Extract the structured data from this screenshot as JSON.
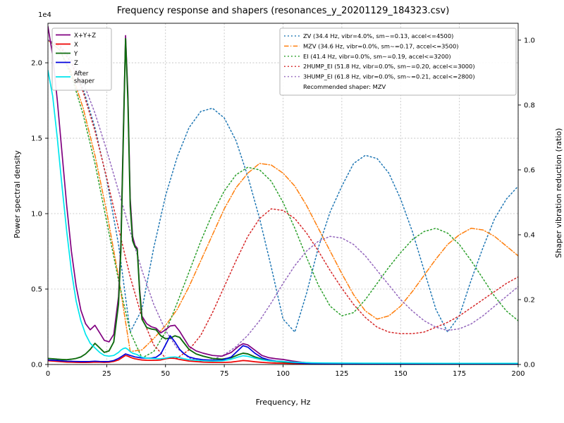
{
  "title": "Frequency response and shapers (resonances_y_20201129_184323.csv)",
  "axes": {
    "x": {
      "label": "Frequency, Hz",
      "min": 0,
      "max": 200,
      "tick_values": [
        0,
        25,
        50,
        75,
        100,
        125,
        150,
        175,
        200
      ],
      "tick_labels": [
        "0",
        "25",
        "50",
        "75",
        "100",
        "125",
        "150",
        "175",
        "200"
      ]
    },
    "left": {
      "label": "Power spectral density",
      "offset_text": "1e4",
      "tick_values": [
        0,
        5000,
        10000,
        15000,
        20000
      ],
      "tick_labels": [
        "0.0",
        "0.5",
        "1.0",
        "1.5",
        "2.0"
      ],
      "ylim": [
        0,
        22620
      ]
    },
    "right": {
      "label": "Shaper vibration reduction (ratio)",
      "tick_values": [
        0,
        0.2,
        0.4,
        0.6,
        0.8,
        1.0
      ],
      "tick_labels": [
        "0.0",
        "0.2",
        "0.4",
        "0.6",
        "0.8",
        "1.0"
      ],
      "ylim": [
        0,
        1.052
      ]
    }
  },
  "legend_psd": {
    "items": [
      {
        "label": "X+Y+Z",
        "color": "#800080"
      },
      {
        "label": "X",
        "color": "#ee0000"
      },
      {
        "label": "Y",
        "color": "#0e6b0e"
      },
      {
        "label": "Z",
        "color": "#0000dd"
      },
      {
        "label": "After\nshaper",
        "color": "#00e5ee"
      }
    ]
  },
  "legend_shapers": {
    "items": [
      {
        "label": "ZV (34.4 Hz, vibr=4.0%, sm~=0.13, accel<=4500)",
        "color": "#1f77b4",
        "style": "dotted"
      },
      {
        "label": "MZV (34.6 Hz, vibr=0.0%, sm~=0.17, accel<=3500)",
        "color": "#ff7f0e",
        "style": "dashdot"
      },
      {
        "label": "EI (41.4 Hz, vibr=0.0%, sm~=0.19, accel<=3200)",
        "color": "#2ca02c",
        "style": "dotted"
      },
      {
        "label": "2HUMP_EI (51.8 Hz, vibr=0.0%, sm~=0.20, accel<=3000)",
        "color": "#d62728",
        "style": "dotted"
      },
      {
        "label": "3HUMP_EI (61.8 Hz, vibr=0.0%, sm~=0.21, accel<=2800)",
        "color": "#9467bd",
        "style": "dotted"
      }
    ],
    "footer": "Recommended shaper: MZV"
  },
  "chart_data": {
    "type": "line",
    "title": "Frequency response and shapers (resonances_y_20201129_184323.csv)",
    "xlabel": "Frequency, Hz",
    "ylabel_left": "Power spectral density",
    "ylabel_right": "Shaper vibration reduction (ratio)",
    "xlim": [
      0,
      200
    ],
    "ylim_left": [
      0,
      22620
    ],
    "ylim_right": [
      0,
      1.052
    ],
    "grid": true,
    "x_psd": [
      0,
      2,
      4,
      6,
      8,
      10,
      12,
      14,
      16,
      18,
      20,
      22,
      24,
      26,
      28,
      30,
      31,
      32,
      33,
      34,
      35,
      36,
      37,
      38,
      39,
      40,
      42,
      44,
      46,
      48,
      50,
      52,
      54,
      56,
      58,
      60,
      63,
      66,
      70,
      74,
      78,
      81,
      83,
      85,
      88,
      91,
      94,
      97,
      100,
      104,
      108,
      112,
      118,
      125,
      135,
      150,
      170,
      200
    ],
    "x_shaper": [
      0,
      5,
      10,
      15,
      20,
      25,
      30,
      35,
      40,
      45,
      50,
      55,
      60,
      65,
      70,
      75,
      80,
      85,
      90,
      95,
      100,
      105,
      110,
      115,
      120,
      125,
      130,
      135,
      140,
      145,
      150,
      155,
      160,
      165,
      170,
      175,
      180,
      185,
      190,
      195,
      200
    ],
    "series": [
      {
        "name": "X+Y+Z",
        "axis": "left",
        "color": "#800080",
        "style": "solid",
        "width": 1.7,
        "x_ref": "x_psd",
        "y": [
          22400,
          20500,
          17500,
          14000,
          10500,
          7500,
          5200,
          3600,
          2700,
          2300,
          2600,
          2100,
          1600,
          1500,
          2000,
          4500,
          8000,
          15000,
          21800,
          18000,
          11000,
          8500,
          7900,
          7700,
          5000,
          3200,
          2700,
          2500,
          2400,
          2100,
          2300,
          2550,
          2600,
          2200,
          1700,
          1200,
          900,
          750,
          600,
          550,
          800,
          1200,
          1380,
          1300,
          950,
          600,
          450,
          380,
          330,
          230,
          150,
          100,
          80,
          70,
          60,
          55,
          50,
          50
        ]
      },
      {
        "name": "X",
        "axis": "left",
        "color": "#ee0000",
        "style": "solid",
        "width": 1.7,
        "x_ref": "x_psd",
        "y": [
          250,
          230,
          200,
          180,
          160,
          150,
          140,
          130,
          130,
          140,
          160,
          150,
          140,
          150,
          200,
          300,
          400,
          500,
          600,
          550,
          480,
          420,
          380,
          350,
          320,
          300,
          280,
          270,
          280,
          300,
          380,
          420,
          400,
          330,
          280,
          230,
          190,
          160,
          140,
          130,
          160,
          220,
          260,
          240,
          180,
          140,
          110,
          90,
          80,
          60,
          50,
          45,
          40,
          35,
          30,
          30,
          25,
          25
        ]
      },
      {
        "name": "Y",
        "axis": "left",
        "color": "#0e6b0e",
        "style": "solid",
        "width": 1.9,
        "x_ref": "x_psd",
        "y": [
          400,
          380,
          350,
          330,
          320,
          350,
          400,
          500,
          700,
          1000,
          1400,
          1100,
          800,
          900,
          1500,
          4000,
          7500,
          14500,
          21600,
          17500,
          10500,
          8200,
          7800,
          7600,
          4800,
          3000,
          2450,
          2350,
          2300,
          1900,
          1700,
          1750,
          1900,
          1800,
          1400,
          1000,
          700,
          550,
          400,
          350,
          450,
          650,
          750,
          700,
          500,
          350,
          250,
          200,
          170,
          120,
          90,
          70,
          60,
          55,
          50,
          45,
          40,
          40
        ]
      },
      {
        "name": "Z",
        "axis": "left",
        "color": "#0000dd",
        "style": "solid",
        "width": 1.7,
        "x_ref": "x_psd",
        "y": [
          300,
          280,
          260,
          240,
          220,
          210,
          200,
          190,
          190,
          200,
          220,
          200,
          190,
          200,
          260,
          400,
          500,
          600,
          700,
          650,
          600,
          550,
          500,
          480,
          450,
          430,
          420,
          430,
          480,
          700,
          1300,
          1900,
          1500,
          1000,
          700,
          500,
          380,
          320,
          280,
          280,
          500,
          950,
          1250,
          1150,
          750,
          450,
          300,
          230,
          200,
          130,
          90,
          70,
          60,
          50,
          45,
          40,
          40,
          40
        ]
      },
      {
        "name": "After shaper",
        "axis": "left",
        "color": "#00e5ee",
        "style": "solid",
        "width": 1.7,
        "x_ref": "x_psd",
        "y": [
          19500,
          17800,
          15000,
          11800,
          8800,
          6200,
          4200,
          2900,
          2000,
          1400,
          1100,
          800,
          600,
          550,
          600,
          800,
          950,
          1050,
          1100,
          1000,
          850,
          750,
          700,
          650,
          550,
          480,
          420,
          400,
          390,
          380,
          420,
          480,
          500,
          450,
          380,
          320,
          280,
          250,
          230,
          240,
          350,
          500,
          580,
          540,
          420,
          310,
          250,
          220,
          200,
          160,
          130,
          110,
          100,
          95,
          90,
          85,
          80,
          80
        ]
      },
      {
        "name": "ZV",
        "axis": "right",
        "color": "#1f77b4",
        "style": "dotted",
        "width": 1.5,
        "x_ref": "x_shaper",
        "y": [
          1.0,
          0.98,
          0.93,
          0.85,
          0.73,
          0.57,
          0.37,
          0.1,
          0.17,
          0.36,
          0.52,
          0.64,
          0.73,
          0.78,
          0.79,
          0.76,
          0.69,
          0.58,
          0.45,
          0.3,
          0.14,
          0.1,
          0.22,
          0.36,
          0.47,
          0.55,
          0.62,
          0.645,
          0.635,
          0.59,
          0.51,
          0.41,
          0.29,
          0.17,
          0.1,
          0.15,
          0.26,
          0.36,
          0.45,
          0.51,
          0.55
        ]
      },
      {
        "name": "MZV",
        "axis": "right",
        "color": "#ff7f0e",
        "style": "dashdot",
        "width": 1.5,
        "x_ref": "x_shaper",
        "y": [
          1.0,
          0.97,
          0.9,
          0.79,
          0.645,
          0.47,
          0.27,
          0.04,
          0.045,
          0.08,
          0.12,
          0.17,
          0.24,
          0.32,
          0.4,
          0.48,
          0.545,
          0.59,
          0.62,
          0.615,
          0.59,
          0.55,
          0.49,
          0.42,
          0.35,
          0.28,
          0.215,
          0.165,
          0.14,
          0.15,
          0.18,
          0.225,
          0.275,
          0.325,
          0.37,
          0.4,
          0.42,
          0.415,
          0.395,
          0.365,
          0.335
        ]
      },
      {
        "name": "EI",
        "axis": "right",
        "color": "#2ca02c",
        "style": "dotted",
        "width": 1.5,
        "x_ref": "x_shaper",
        "y": [
          1.0,
          0.97,
          0.89,
          0.77,
          0.62,
          0.44,
          0.26,
          0.1,
          0.02,
          0.04,
          0.1,
          0.19,
          0.285,
          0.38,
          0.465,
          0.535,
          0.585,
          0.608,
          0.6,
          0.565,
          0.5,
          0.42,
          0.33,
          0.245,
          0.18,
          0.15,
          0.16,
          0.2,
          0.25,
          0.3,
          0.345,
          0.385,
          0.41,
          0.42,
          0.405,
          0.37,
          0.32,
          0.265,
          0.21,
          0.165,
          0.135
        ]
      },
      {
        "name": "2HUMP_EI",
        "axis": "right",
        "color": "#d62728",
        "style": "dotted",
        "width": 1.5,
        "x_ref": "x_shaper",
        "y": [
          1.0,
          0.98,
          0.93,
          0.84,
          0.72,
          0.575,
          0.42,
          0.27,
          0.145,
          0.06,
          0.02,
          0.02,
          0.045,
          0.09,
          0.16,
          0.24,
          0.32,
          0.395,
          0.45,
          0.48,
          0.475,
          0.45,
          0.405,
          0.35,
          0.29,
          0.235,
          0.185,
          0.145,
          0.115,
          0.1,
          0.095,
          0.095,
          0.1,
          0.115,
          0.13,
          0.15,
          0.175,
          0.2,
          0.225,
          0.25,
          0.27
        ]
      },
      {
        "name": "3HUMP_EI",
        "axis": "right",
        "color": "#9467bd",
        "style": "dotted",
        "width": 1.5,
        "x_ref": "x_shaper",
        "y": [
          1.0,
          0.985,
          0.94,
          0.87,
          0.775,
          0.66,
          0.535,
          0.41,
          0.29,
          0.185,
          0.105,
          0.05,
          0.02,
          0.01,
          0.015,
          0.03,
          0.055,
          0.09,
          0.135,
          0.19,
          0.25,
          0.305,
          0.35,
          0.38,
          0.395,
          0.39,
          0.37,
          0.335,
          0.29,
          0.245,
          0.2,
          0.165,
          0.135,
          0.115,
          0.105,
          0.11,
          0.125,
          0.15,
          0.18,
          0.21,
          0.24
        ]
      }
    ],
    "recommended_shaper": "MZV"
  }
}
